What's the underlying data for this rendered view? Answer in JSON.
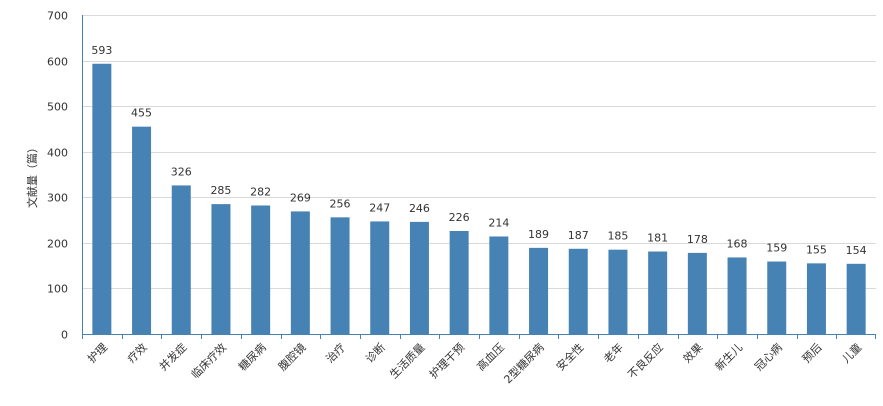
{
  "chart_data": {
    "type": "bar",
    "title": "",
    "xlabel": "",
    "ylabel": "文献量（篇）",
    "ylim": [
      0,
      700
    ],
    "yticks": [
      0,
      100,
      200,
      300,
      400,
      500,
      600,
      700
    ],
    "grid": true,
    "legend": "none",
    "colors": {
      "bar": "#4682b4",
      "grid": "#d9d9d9",
      "axis": "#4682b4"
    },
    "categories": [
      "护理",
      "疗效",
      "并发症",
      "临床疗效",
      "糖尿病",
      "腹腔镜",
      "治疗",
      "诊断",
      "生活质量",
      "护理干预",
      "高血压",
      "2型糖尿病",
      "安全性",
      "老年",
      "不良反应",
      "效果",
      "新生儿",
      "冠心病",
      "预后",
      "儿童"
    ],
    "values": [
      593,
      455,
      326,
      285,
      282,
      269,
      256,
      247,
      246,
      226,
      214,
      189,
      187,
      185,
      181,
      178,
      168,
      159,
      155,
      154
    ]
  }
}
